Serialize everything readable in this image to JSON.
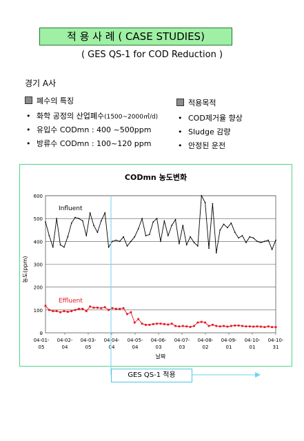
{
  "header": {
    "title": "적 용 사 례 ( CASE STUDIES)",
    "subtitle": "( GES QS-1  for COD Reduction )"
  },
  "company": "경기 A사",
  "wastewater": {
    "heading": "폐수의 특징",
    "items": [
      {
        "text": "화학 공정의 산업폐수",
        "note": "(1500~2000㎥/d)"
      },
      {
        "text": "유입수 CODmn :  400 ~500ppm",
        "note": ""
      },
      {
        "text": "방류수 CODmn : 100~120 ppm",
        "note": ""
      }
    ]
  },
  "purpose": {
    "heading": "적용목적",
    "items": [
      "COD제거율 향상",
      "Sludge 감량",
      "안정된 운전"
    ]
  },
  "colors": {
    "influent": "#000000",
    "effluent": "#e8141e",
    "marker_line": "#6fd3ef",
    "frame": "#4fd48a"
  },
  "chart_data": {
    "type": "line",
    "title": "CODmn  농도변화",
    "ylabel": "농도(ppm)",
    "xlabel": "날짜",
    "ylim": [
      0,
      600
    ],
    "yticks": [
      0,
      100,
      200,
      300,
      400,
      500,
      600
    ],
    "xticks": [
      {
        "top": "04-01-",
        "bottom": "05"
      },
      {
        "top": "04-02-",
        "bottom": "04"
      },
      {
        "top": "04-03-",
        "bottom": "05"
      },
      {
        "top": "04-04-",
        "bottom": "04"
      },
      {
        "top": "04-05-",
        "bottom": "04"
      },
      {
        "top": "04-06-",
        "bottom": "03"
      },
      {
        "top": "04-07-",
        "bottom": "03"
      },
      {
        "top": "04-08-",
        "bottom": "02"
      },
      {
        "top": "04-09-",
        "bottom": "01"
      },
      {
        "top": "04-10-",
        "bottom": "01"
      },
      {
        "top": "04-10-",
        "bottom": "31"
      }
    ],
    "grid": "horizontal",
    "series": [
      {
        "name": "Influent",
        "values": [
          485,
          425,
          375,
          500,
          385,
          375,
          420,
          480,
          505,
          500,
          490,
          425,
          525,
          470,
          440,
          490,
          525,
          375,
          400,
          405,
          400,
          420,
          380,
          400,
          420,
          455,
          500,
          425,
          430,
          485,
          500,
          400,
          490,
          425,
          470,
          495,
          390,
          470,
          385,
          420,
          395,
          380,
          600,
          570,
          370,
          565,
          350,
          450,
          475,
          460,
          480,
          440,
          415,
          425,
          395,
          420,
          415,
          400,
          395,
          400,
          405,
          365,
          405
        ],
        "annotation": "Influent"
      },
      {
        "name": "Effluent",
        "values": [
          118,
          100,
          95,
          95,
          90,
          95,
          92,
          95,
          100,
          105,
          105,
          95,
          115,
          110,
          110,
          108,
          112,
          100,
          108,
          105,
          105,
          108,
          82,
          90,
          45,
          60,
          40,
          35,
          35,
          38,
          40,
          40,
          38,
          36,
          40,
          30,
          28,
          30,
          28,
          26,
          30,
          45,
          48,
          45,
          30,
          35,
          30,
          28,
          30,
          27,
          30,
          32,
          32,
          30,
          28,
          28,
          27,
          28,
          27,
          25,
          28,
          25,
          25
        ],
        "annotation": "Effluent"
      }
    ],
    "event": {
      "label": "GES QS-1 적용",
      "start_index": 17
    }
  }
}
